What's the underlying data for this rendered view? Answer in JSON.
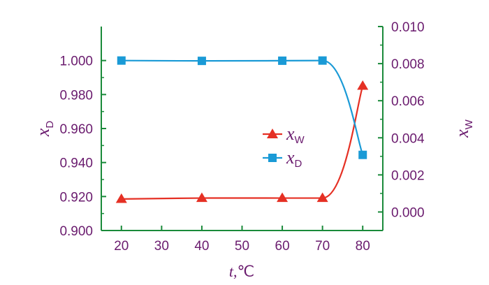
{
  "chart_data": {
    "type": "line",
    "x": [
      20,
      40,
      60,
      70,
      80
    ],
    "xlabel_var": "t",
    "xlabel_unit": ",℃",
    "xticks": [
      "20",
      "30",
      "40",
      "50",
      "60",
      "70",
      "80"
    ],
    "xlim": [
      15,
      85
    ],
    "left_axis": {
      "label_main": "x",
      "label_sub": "D",
      "ylim": [
        0.9,
        1.02
      ],
      "ticks": [
        "0.900",
        "0.920",
        "0.940",
        "0.960",
        "0.980",
        "1.000"
      ],
      "tick_values": [
        0.9,
        0.92,
        0.94,
        0.96,
        0.98,
        1.0
      ]
    },
    "right_axis": {
      "label_main": "x",
      "label_sub": "W",
      "ylim": [
        -0.001,
        0.01
      ],
      "ticks": [
        "0.000",
        "0.002",
        "0.004",
        "0.006",
        "0.008",
        "0.010"
      ],
      "tick_values": [
        0.0,
        0.002,
        0.004,
        0.006,
        0.008,
        0.01
      ]
    },
    "series": [
      {
        "name_main": "x",
        "name_sub": "W",
        "axis": "right",
        "marker": "triangle",
        "values": [
          0.0007,
          0.00075,
          0.00075,
          0.00075,
          0.0068
        ]
      },
      {
        "name_main": "x",
        "name_sub": "D",
        "axis": "left",
        "marker": "square",
        "values": [
          1.0,
          0.9998,
          0.9999,
          1.0,
          0.9445
        ]
      }
    ],
    "colors": {
      "axis_left": "#6a1b6e",
      "axis_right": "#1a8a3a",
      "series_w": "#e53024",
      "series_d": "#1a9ad6"
    },
    "legend_position": "center-right",
    "grid": false
  }
}
